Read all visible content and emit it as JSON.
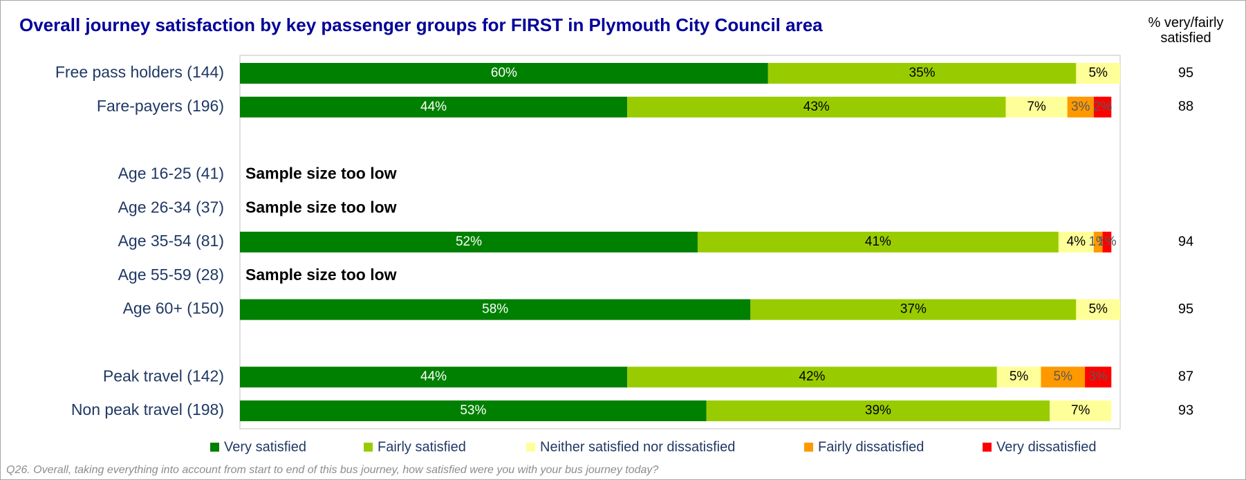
{
  "chart_data": {
    "type": "stacked_bar_horizontal",
    "title": "Overall journey satisfaction by key passenger groups for FIRST in Plymouth City Council area",
    "side_header": "% very/fairly satisfied",
    "footnote": "Q26.  Overall, taking everything into account from start to end of this bus journey, how satisfied were you with your bus journey today?",
    "categories": [
      "Free pass holders (144)",
      "Fare-payers (196)",
      null,
      "Age 16-25 (41)",
      "Age 26-34 (37)",
      "Age 35-54 (81)",
      "Age 55-59 (28)",
      "Age 60+ (150)",
      null,
      "Peak travel (142)",
      "Non peak travel (198)"
    ],
    "notes": [
      null,
      null,
      null,
      "Sample size too low",
      "Sample size too low",
      null,
      "Sample size too low",
      null,
      null,
      null,
      null
    ],
    "satisfied": [
      95,
      88,
      null,
      null,
      null,
      94,
      null,
      95,
      null,
      87,
      93
    ],
    "xlim": [
      0,
      100
    ],
    "series": [
      {
        "name": "Very satisfied",
        "color": "#008000",
        "label_color": "#ffffff",
        "values": [
          60,
          44,
          null,
          null,
          null,
          52,
          null,
          58,
          null,
          44,
          53
        ],
        "value_labels": [
          "60%",
          "44%",
          null,
          null,
          null,
          "52%",
          null,
          "58%",
          null,
          "44%",
          "53%"
        ]
      },
      {
        "name": "Fairly satisfied",
        "color": "#99cc00",
        "label_color": "#000000",
        "values": [
          35,
          43,
          null,
          null,
          null,
          41,
          null,
          37,
          null,
          42,
          39
        ],
        "value_labels": [
          "35%",
          "43%",
          null,
          null,
          null,
          "41%",
          null,
          "37%",
          null,
          "42%",
          "39%"
        ]
      },
      {
        "name": "Neither satisfied nor dissatisfied",
        "color": "#ffff99",
        "label_color": "#000000",
        "values": [
          5,
          7,
          null,
          null,
          null,
          4,
          null,
          5,
          null,
          5,
          7
        ],
        "value_labels": [
          "5%",
          "7%",
          null,
          null,
          null,
          "4%",
          null,
          "5%",
          null,
          "5%",
          "7%"
        ]
      },
      {
        "name": "Fairly dissatisfied",
        "color": "#ff9900",
        "label_color": "#595959",
        "values": [
          null,
          3,
          null,
          null,
          null,
          1,
          null,
          null,
          null,
          5,
          null
        ],
        "value_labels": [
          null,
          "3%",
          null,
          null,
          null,
          "1%",
          null,
          null,
          null,
          "5%",
          null
        ]
      },
      {
        "name": "Very dissatisfied",
        "color": "#ff0000",
        "label_color": "#595959",
        "values": [
          null,
          2,
          null,
          null,
          null,
          1,
          null,
          null,
          null,
          3,
          null
        ],
        "value_labels": [
          null,
          "2%",
          null,
          null,
          null,
          "1%",
          null,
          null,
          null,
          "3%",
          null
        ]
      }
    ]
  }
}
